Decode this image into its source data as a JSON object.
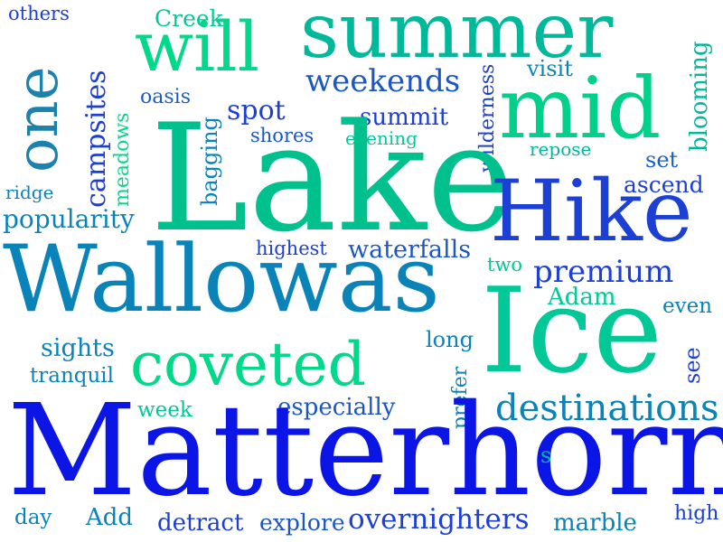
{
  "words": {
    "summer": "summer",
    "will": "will",
    "mid": "mid",
    "one": "one",
    "others": "others",
    "creek": "Creek",
    "campsites": "campsites",
    "weekends": "weekends",
    "wilderness": "wilderness",
    "visit": "visit",
    "blooming": "blooming",
    "oasis": "oasis",
    "meadows": "meadows",
    "spot": "spot",
    "summit": "summit",
    "shores": "shores",
    "evening": "evening",
    "repose": "repose",
    "set": "set",
    "bagging": "bagging",
    "lake": "Lake",
    "hike": "Hike",
    "ascend": "ascend",
    "ridge": "ridge",
    "popularity": "popularity",
    "highest": "highest",
    "waterfalls": "waterfalls",
    "two": "two",
    "premium": "premium",
    "wallowas": "Wallowas",
    "adam": "Adam",
    "even": "even",
    "ice": "Ice",
    "long": "long",
    "sights": "sights",
    "coveted": "coveted",
    "see": "see",
    "tranquil": "tranquil",
    "prefer": "prefer",
    "week": "week",
    "especially": "especially",
    "destinations": "destinations",
    "matterhorn": "Matterhorn",
    "s": "s",
    "day": "day",
    "add": "Add",
    "detract": "detract",
    "explore": "explore",
    "overnighters": "overnighters",
    "marble": "marble",
    "high": "high"
  },
  "colors": {
    "green": "#00e681",
    "teal": "#00b89a",
    "blue": "#0a84b8",
    "dark_blue": "#1c3fd4",
    "royal_blue": "#0a15e6"
  }
}
